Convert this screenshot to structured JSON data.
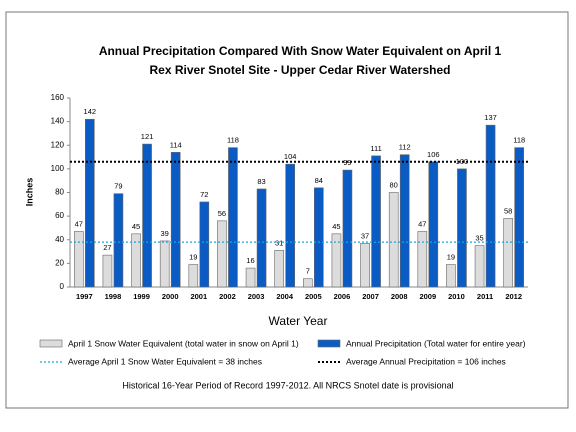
{
  "chart_data": {
    "type": "bar",
    "title": "Annual Precipitation Compared With Snow Water Equivalent on April 1",
    "subtitle": "Rex River Snotel Site - Upper Cedar River Watershed",
    "y_label": "Inches",
    "x_label": "Water Year",
    "categories": [
      "1997",
      "1998",
      "1999",
      "2000",
      "2001",
      "2002",
      "2003",
      "2004",
      "2005",
      "2006",
      "2007",
      "2008",
      "2009",
      "2010",
      "2011",
      "2012"
    ],
    "series": [
      {
        "name": "April 1 Snow Water Equivalent (total water in snow on April 1)",
        "color": "#dcdcdc",
        "values": [
          47,
          27,
          45,
          39,
          19,
          56,
          16,
          31,
          7,
          45,
          37,
          80,
          47,
          19,
          35,
          58
        ]
      },
      {
        "name": "Annual Precipitation (Total water for entire year)",
        "color": "#0b5bc4",
        "values": [
          142,
          79,
          121,
          114,
          72,
          118,
          83,
          104,
          84,
          99,
          111,
          112,
          106,
          100,
          137,
          118
        ]
      }
    ],
    "reference_lines": [
      {
        "label": "Average April 1 Snow Water Equivalent = 38 inches",
        "value": 38,
        "color": "#1ba6d8"
      },
      {
        "label": "Average Annual Precipitation = 106 inches",
        "value": 106,
        "color": "#000000"
      }
    ],
    "ylim": [
      0,
      160
    ],
    "yticks": [
      0,
      20,
      40,
      60,
      80,
      100,
      120,
      140,
      160
    ],
    "grid": false,
    "footnote": "Historical 16-Year Period of Record 1997-2012.  All NRCS Snotel date is provisional"
  }
}
